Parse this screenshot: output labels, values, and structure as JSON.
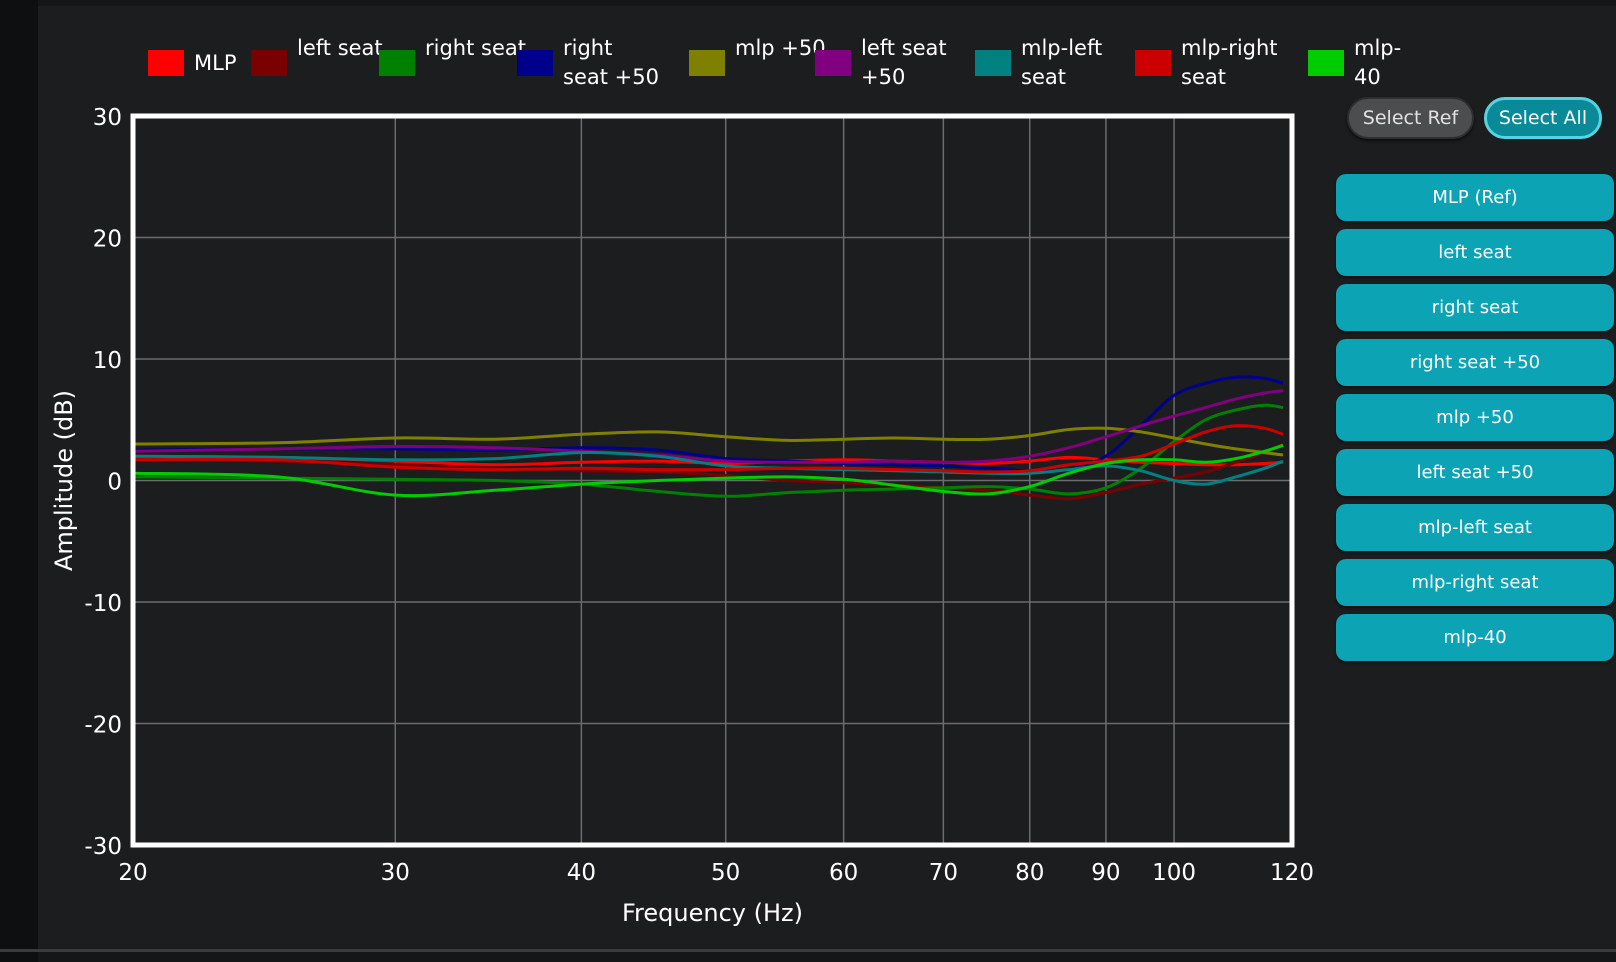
{
  "legend": [
    {
      "label": "MLP",
      "color": "#ff0000"
    },
    {
      "label": "left seat",
      "color": "#7a0000"
    },
    {
      "label": "right seat",
      "color": "#008000"
    },
    {
      "label": "right seat +50",
      "color": "#00008b"
    },
    {
      "label": "mlp +50",
      "color": "#808000"
    },
    {
      "label": "left seat +50",
      "color": "#800080"
    },
    {
      "label": "mlp-left seat",
      "color": "#008080"
    },
    {
      "label": "mlp-right seat",
      "color": "#cc0000"
    },
    {
      "label": "mlp-40",
      "color": "#00cc00"
    }
  ],
  "buttons": {
    "select_ref": "Select Ref",
    "select_all": "Select All",
    "series": [
      "MLP (Ref)",
      "left seat",
      "right seat",
      "right seat +50",
      "mlp +50",
      "left seat +50",
      "mlp-left seat",
      "mlp-right seat",
      "mlp-40"
    ]
  },
  "chart_data": {
    "type": "line",
    "title": "",
    "xlabel": "Frequency (Hz)",
    "ylabel": "Amplitude (dB)",
    "x_scale": "log",
    "xlim": [
      20,
      120
    ],
    "ylim": [
      -30,
      30
    ],
    "x_ticks": [
      20,
      30,
      40,
      50,
      60,
      70,
      80,
      90,
      100,
      120
    ],
    "y_ticks": [
      30,
      20,
      10,
      0,
      -10,
      -20,
      -30
    ],
    "grid": true,
    "legend_position": "top",
    "x": [
      20,
      25,
      30,
      35,
      40,
      45,
      50,
      55,
      60,
      65,
      70,
      75,
      80,
      85,
      90,
      95,
      100,
      105,
      110,
      115,
      120
    ],
    "series": [
      {
        "name": "MLP",
        "color": "#ff0000",
        "values": [
          2.0,
          1.9,
          1.6,
          1.3,
          1.5,
          1.6,
          1.4,
          1.6,
          1.7,
          1.6,
          1.5,
          1.4,
          1.6,
          1.9,
          1.7,
          1.5,
          1.4,
          1.3,
          1.3,
          1.4,
          1.5
        ]
      },
      {
        "name": "left seat",
        "color": "#7a0000",
        "values": [
          1.8,
          1.6,
          1.3,
          1.0,
          0.8,
          0.7,
          0.4,
          0.0,
          -0.2,
          -0.4,
          -0.6,
          -0.8,
          -1.2,
          -1.5,
          -1.0,
          -0.3,
          0.2,
          0.7,
          1.5,
          2.3,
          3.0
        ]
      },
      {
        "name": "right seat",
        "color": "#008000",
        "values": [
          0.3,
          0.2,
          0.1,
          0.0,
          -0.3,
          -0.9,
          -1.3,
          -1.0,
          -0.8,
          -0.7,
          -0.6,
          -0.5,
          -0.7,
          -1.1,
          -0.6,
          1.0,
          3.2,
          5.0,
          5.8,
          6.2,
          6.0
        ]
      },
      {
        "name": "right seat +50",
        "color": "#00008b",
        "values": [
          2.5,
          2.6,
          2.6,
          2.5,
          2.7,
          2.5,
          1.8,
          1.6,
          1.4,
          1.3,
          1.2,
          1.0,
          0.8,
          0.9,
          2.0,
          4.5,
          7.0,
          8.0,
          8.5,
          8.4,
          8.0
        ]
      },
      {
        "name": "mlp +50",
        "color": "#808000",
        "values": [
          3.0,
          3.1,
          3.5,
          3.4,
          3.8,
          4.0,
          3.6,
          3.3,
          3.4,
          3.5,
          3.4,
          3.4,
          3.7,
          4.2,
          4.3,
          4.0,
          3.5,
          3.0,
          2.6,
          2.3,
          2.1
        ]
      },
      {
        "name": "left seat +50",
        "color": "#800080",
        "values": [
          2.4,
          2.6,
          2.8,
          2.7,
          2.4,
          2.1,
          1.6,
          1.5,
          1.5,
          1.6,
          1.5,
          1.6,
          2.0,
          2.7,
          3.6,
          4.5,
          5.3,
          6.0,
          6.7,
          7.2,
          7.4
        ]
      },
      {
        "name": "mlp-left seat",
        "color": "#008080",
        "values": [
          2.0,
          1.9,
          1.7,
          1.8,
          2.3,
          2.0,
          1.2,
          1.0,
          0.9,
          0.8,
          0.7,
          0.6,
          0.6,
          0.9,
          1.2,
          0.8,
          0.0,
          -0.3,
          0.3,
          1.0,
          1.6
        ]
      },
      {
        "name": "mlp-right seat",
        "color": "#cc0000",
        "values": [
          1.7,
          1.7,
          1.1,
          0.9,
          1.0,
          0.9,
          0.9,
          1.0,
          1.0,
          0.9,
          0.8,
          0.7,
          0.8,
          1.3,
          1.6,
          2.0,
          3.0,
          4.0,
          4.5,
          4.3,
          3.8
        ]
      },
      {
        "name": "mlp-40",
        "color": "#00cc00",
        "values": [
          0.6,
          0.3,
          -1.2,
          -0.8,
          -0.3,
          0.0,
          0.2,
          0.3,
          0.1,
          -0.4,
          -0.9,
          -1.1,
          -0.5,
          0.6,
          1.4,
          1.7,
          1.7,
          1.5,
          1.8,
          2.4,
          2.9
        ]
      }
    ]
  }
}
